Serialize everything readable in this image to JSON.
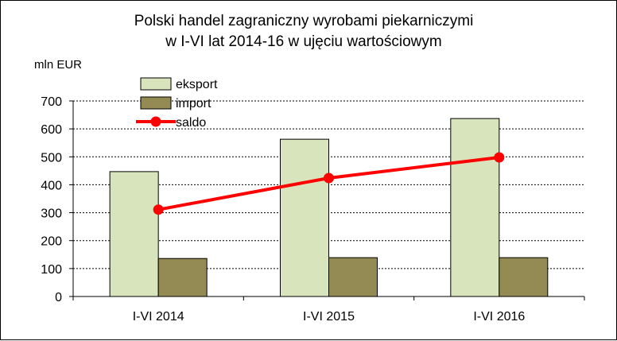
{
  "chart_data": {
    "type": "bar",
    "title_line1": "Polski handel zagraniczny wyrobami piekarniczymi",
    "title_line2": "w I-VI lat 2014-16 w ujęciu wartościowym",
    "ylabel": "mln EUR",
    "xlabel": "",
    "categories": [
      "I-VI 2014",
      "I-VI 2015",
      "I-VI 2016"
    ],
    "ylim": [
      0,
      700
    ],
    "yticks": [
      0,
      100,
      200,
      300,
      400,
      500,
      600,
      700
    ],
    "grid": true,
    "legend_position": "top-left",
    "series": [
      {
        "name": "eksport",
        "kind": "bar",
        "values": [
          447,
          563,
          637
        ],
        "color": "#d8e4bc"
      },
      {
        "name": "import",
        "kind": "bar",
        "values": [
          136,
          139,
          139
        ],
        "color": "#948a54"
      },
      {
        "name": "saldo",
        "kind": "line",
        "values": [
          311,
          424,
          498
        ],
        "color": "#ff0000"
      }
    ]
  }
}
